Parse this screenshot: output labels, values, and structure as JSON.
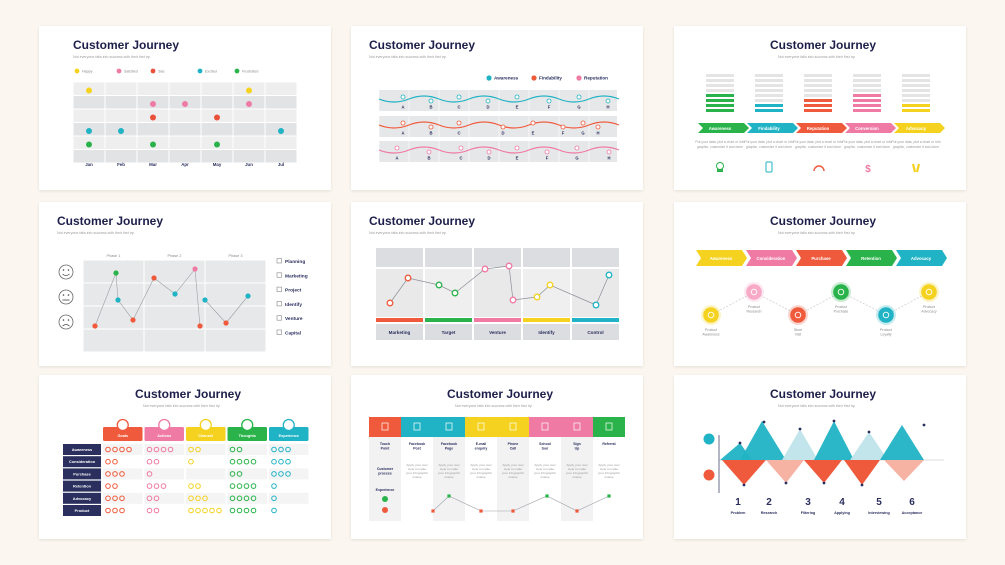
{
  "title": "Customer Journey",
  "subtitle": "Not everyone falls into success with their first try.",
  "colors": {
    "yellow": "#f4d21f",
    "teal": "#20b3c5",
    "pink": "#ef7aa4",
    "orange": "#f05a3c",
    "green": "#29b34a",
    "navy": "#2a2f5e",
    "red": "#e8523a"
  },
  "slide1": {
    "legend": [
      "Happy",
      "Satisfied",
      "Sad",
      "Excited",
      "Frustrated"
    ],
    "months": [
      "Jan",
      "Feb",
      "Mar",
      "Apr",
      "May",
      "Jun",
      "Jul"
    ]
  },
  "slide2": {
    "legend": [
      "Awareness",
      "Findability",
      "Reputation"
    ],
    "points": [
      "A",
      "B",
      "C",
      "D",
      "E",
      "F",
      "G",
      "H"
    ]
  },
  "slide3": {
    "stages": [
      "Awareness",
      "Findability",
      "Reputation",
      "Conversion",
      "Advocacy"
    ],
    "desc": "Put your data, plot a chart or infographic, customize it and done"
  },
  "slide4": {
    "phases": [
      "Phase 1",
      "Phase 2",
      "Phase 3"
    ],
    "items": [
      "Planning",
      "Marketing",
      "Project",
      "Identify",
      "Venture",
      "Capital"
    ]
  },
  "slide5": {
    "labels": [
      "Marketing",
      "Target",
      "Venture",
      "Identify",
      "Control"
    ]
  },
  "slide6": {
    "stages": [
      "Awareness",
      "Consideration",
      "Purchase",
      "Retention",
      "Advocacy"
    ],
    "steps": [
      "Product Awareness",
      "Product Research",
      "Store Visit",
      "Product Purchase",
      "Product Loyalty",
      "Product Advocacy"
    ]
  },
  "slide7": {
    "cols": [
      "Goals",
      "Actions",
      "Channel",
      "Thoughts",
      "Experience"
    ],
    "rows": [
      "Awareness",
      "Consideration",
      "Purchase",
      "Retention",
      "Advocacy",
      "Product"
    ]
  },
  "slide8": {
    "touch_label": "Touch Point",
    "process_label": "Customer process",
    "experience_label": "Experience",
    "touch_points": [
      "Facebook Post",
      "Facebook Page",
      "E-mail enquiry",
      "Phone Call",
      "School tour",
      "Sign Up",
      "Referral"
    ],
    "process_text": "Apply your own style to make your infographic unique"
  },
  "slide9": {
    "numbers": [
      "1",
      "2",
      "3",
      "4",
      "5",
      "6"
    ],
    "labels": [
      "Problem",
      "Research",
      "Filtering",
      "Applying",
      "Interviewing",
      "Acceptance"
    ]
  }
}
